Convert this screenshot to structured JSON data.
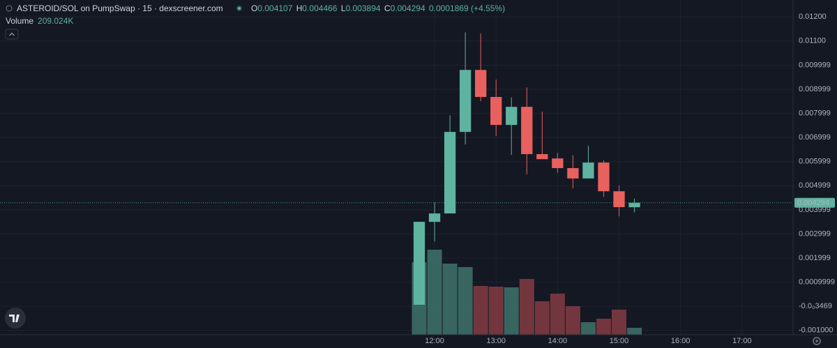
{
  "chart_data": {
    "type": "candlestick",
    "title": "ASTEROID/SOL on PumpSwap · 15 · dexscreener.com",
    "ohlc_labels": [
      "O",
      "H",
      "L",
      "C"
    ],
    "change": "0.0001869 (+4.55%)",
    "volume_title": "Volume",
    "volume_label": "209.024K",
    "x": [
      11.75,
      12,
      12.25,
      12.5,
      12.75,
      13,
      13.25,
      13.5,
      13.75,
      14,
      14.25,
      14.5,
      14.75,
      15,
      15.25
    ],
    "open": [
      6.4e-05,
      0.0035,
      0.00385,
      0.00723,
      0.0098,
      0.00868,
      0.00752,
      0.00827,
      0.00631,
      0.00613,
      0.00573,
      0.0053,
      0.00596,
      0.00477,
      0.004107
    ],
    "high": [
      0.003503,
      0.00431,
      0.00792,
      0.01136,
      0.01131,
      0.0094,
      0.00866,
      0.00908,
      0.00807,
      0.00636,
      0.00627,
      0.00665,
      0.00605,
      0.005,
      0.004466
    ],
    "low": [
      6.4e-05,
      0.00269,
      0.00385,
      0.00671,
      0.0085,
      0.00706,
      0.00628,
      0.00547,
      0.0061,
      0.00553,
      0.00489,
      0.0053,
      0.00454,
      0.00373,
      0.003894
    ],
    "close": [
      0.003503,
      0.00385,
      0.00723,
      0.0098,
      0.00868,
      0.00752,
      0.00827,
      0.00631,
      0.0061,
      0.00573,
      0.0053,
      0.00596,
      0.00477,
      0.00411,
      0.004294
    ],
    "volume": [
      2174000,
      2550000,
      2132000,
      2028000,
      1463000,
      1442000,
      1421000,
      1672000,
      1003000,
      1233000,
      857000,
      376000,
      481000,
      752000,
      209024
    ],
    "up_color": "#5fb3a1",
    "down_color": "#e8615e",
    "volume_up_color": "#3c6e66",
    "volume_down_color": "#7d3a41",
    "xlim": [
      4.932,
      17.83
    ],
    "xticks": [
      {
        "value": 12,
        "label": "12:00"
      },
      {
        "value": 13,
        "label": "13:00"
      },
      {
        "value": 14,
        "label": "14:00"
      },
      {
        "value": 15,
        "label": "15:00"
      },
      {
        "value": 16,
        "label": "16:00"
      },
      {
        "value": 17,
        "label": "17:00"
      }
    ],
    "ylim": [
      -0.00118,
      0.0127
    ],
    "yticks": [
      {
        "value": 0.012,
        "label": "0.01200"
      },
      {
        "value": 0.011,
        "label": "0.01100"
      },
      0.009999,
      0.008999,
      0.007999,
      0.006999,
      0.005999,
      0.004999,
      0.003999,
      0.002999,
      0.001999,
      0.0009999,
      {
        "value": -3.469e-08,
        "label": "-0.0₀3469"
      },
      {
        "value": -0.001,
        "label": "-0.001000"
      }
    ],
    "grid": true
  }
}
